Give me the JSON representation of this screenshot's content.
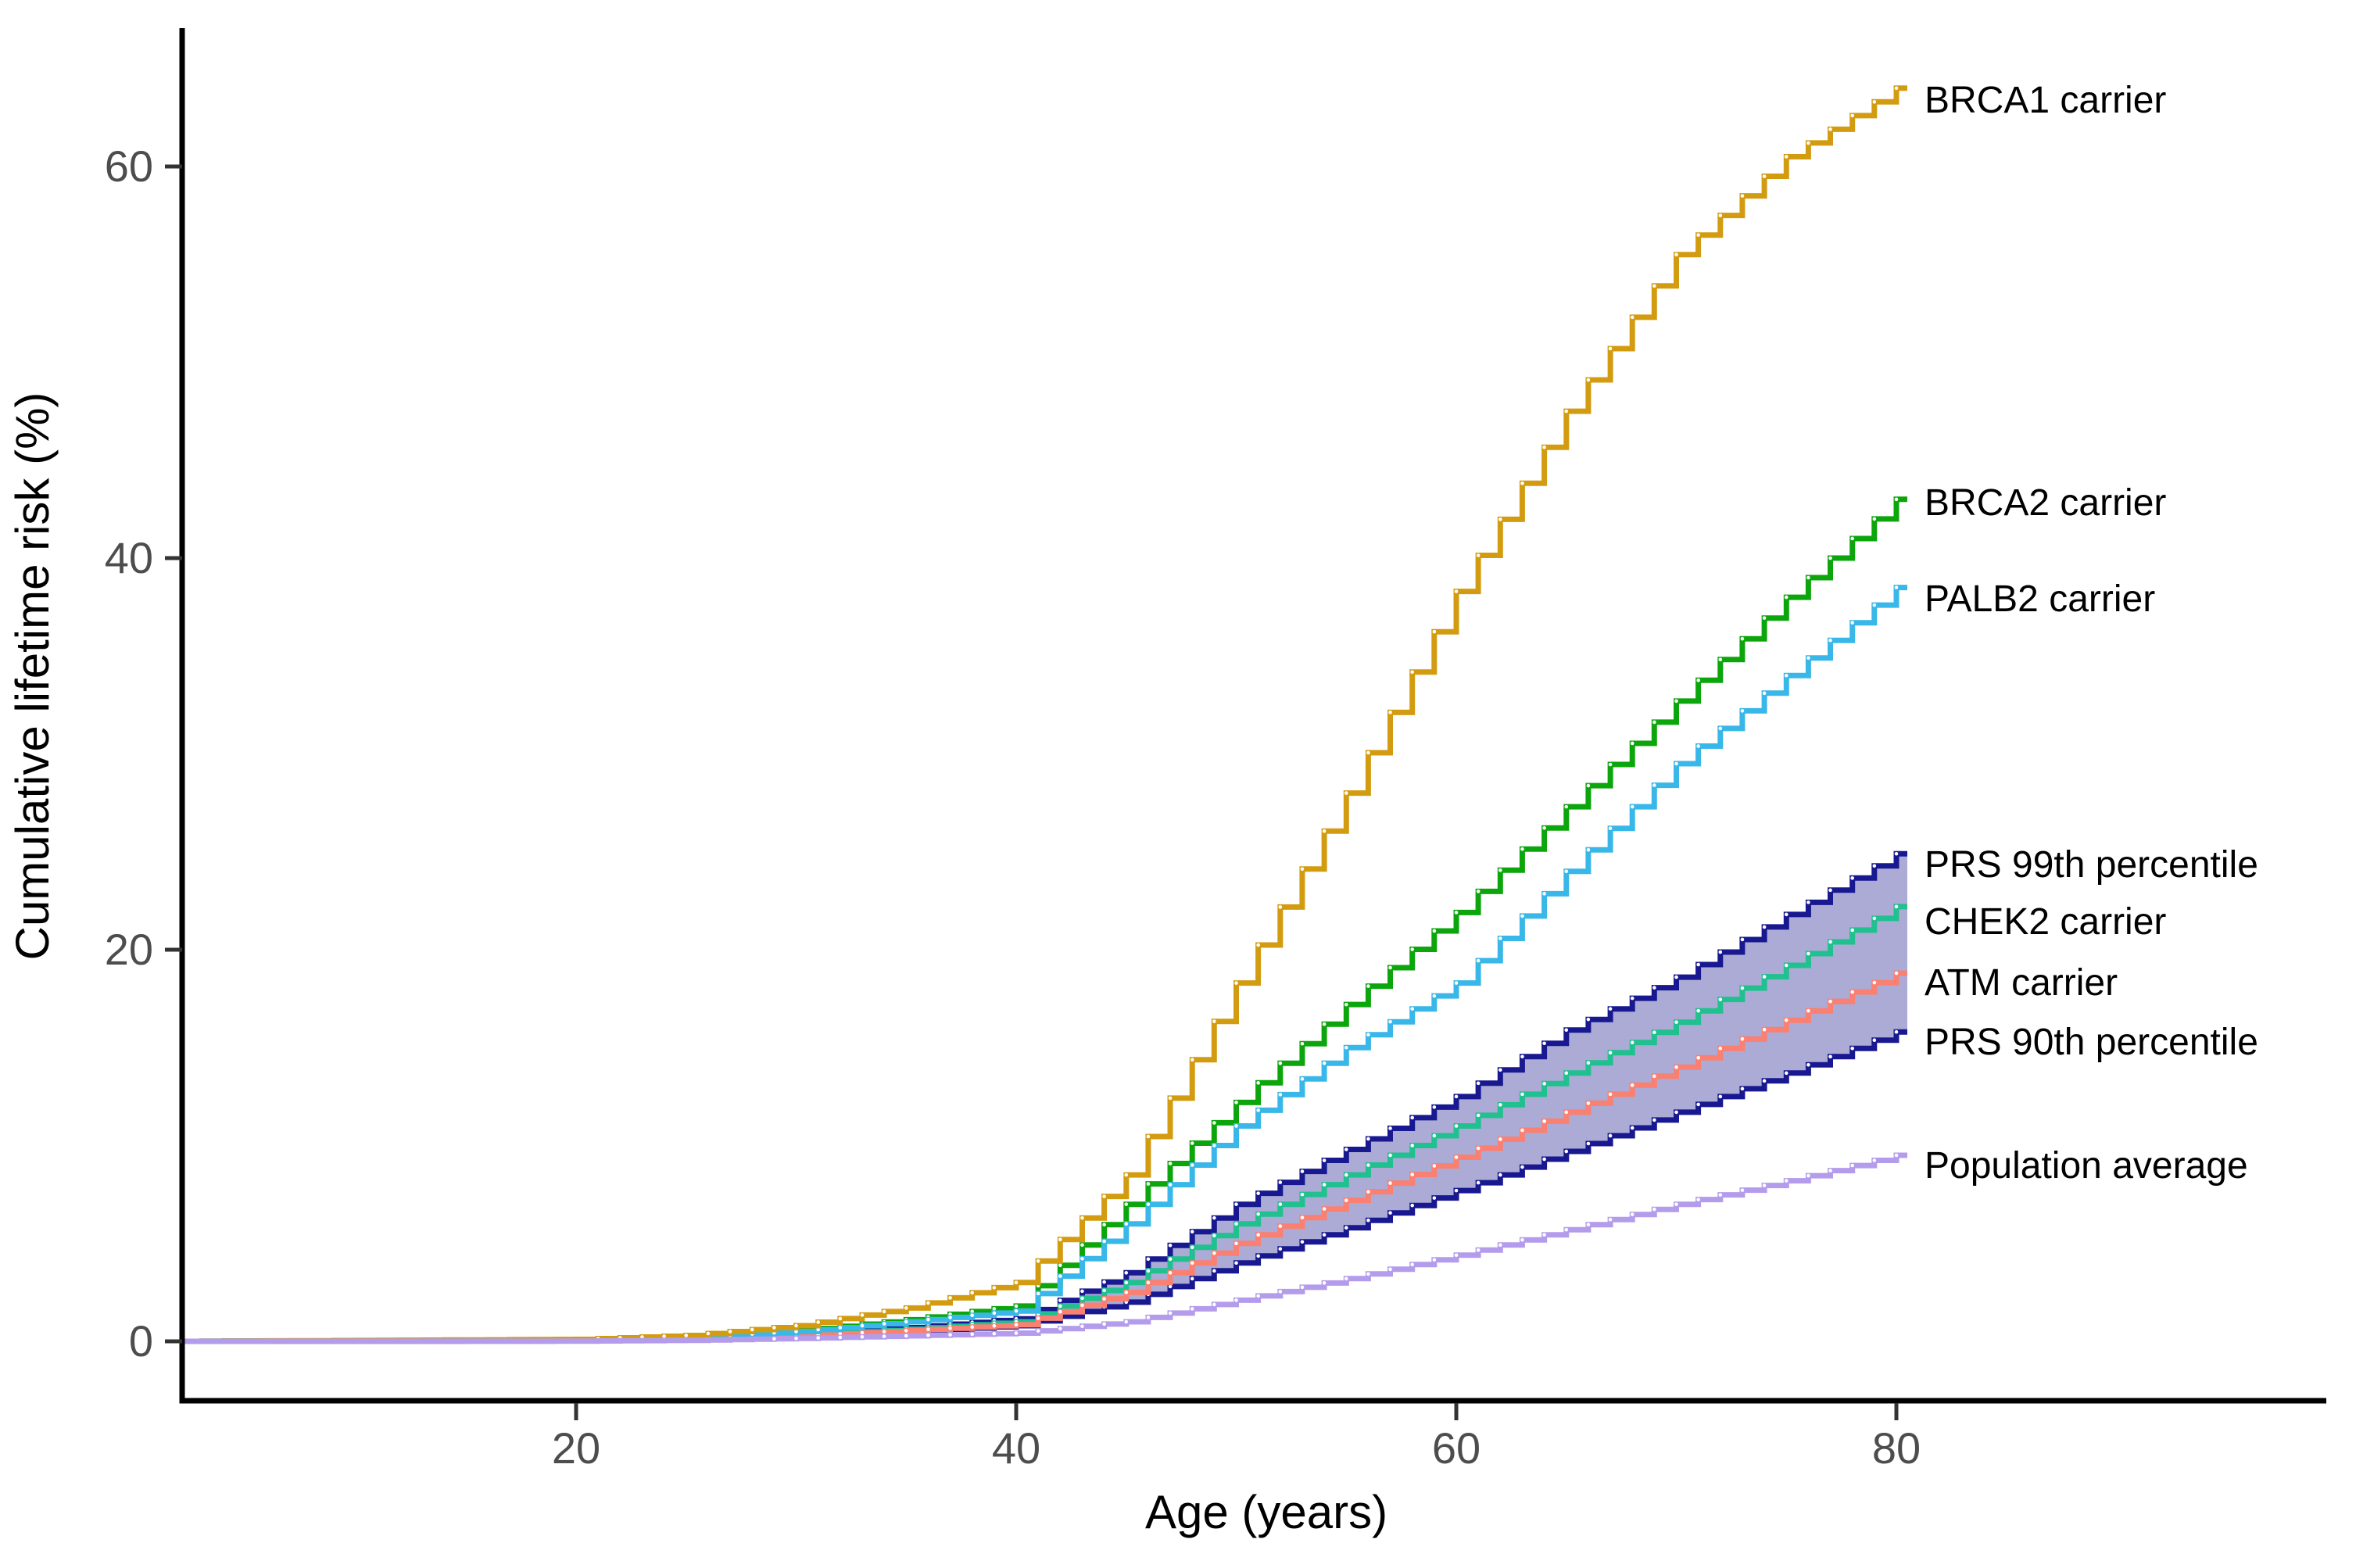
{
  "chart_data": {
    "type": "line",
    "variant": "cumulative-step-curves",
    "title": "",
    "xlabel": "Age (years)",
    "ylabel": "Cumulative lifetime risk (%)",
    "x_ticks": [
      20,
      40,
      60,
      80
    ],
    "y_ticks": [
      0,
      20,
      40,
      60
    ],
    "xlim": [
      2,
      99.5
    ],
    "ylim": [
      0,
      66
    ],
    "grid": "off",
    "legend_position": "direct-labels-right-of-line-ends",
    "x_anchors": [
      2,
      20,
      25,
      30,
      35,
      40,
      45,
      50,
      55,
      60,
      65,
      70,
      75,
      80
    ],
    "series": [
      {
        "label": "BRCA1 carrier",
        "color": "#D39C10",
        "values": [
          0,
          0.1,
          0.3,
          0.8,
          1.7,
          3.0,
          8.5,
          18.3,
          28.0,
          38.3,
          47.5,
          55.5,
          60.5,
          64.0
        ],
        "end_label_y": 127
      },
      {
        "label": "BRCA2 carrier",
        "color": "#0CA60C",
        "values": [
          0,
          0.05,
          0.2,
          0.55,
          1.1,
          1.8,
          7.0,
          12.2,
          17.2,
          21.9,
          27.3,
          32.7,
          38.0,
          43.0
        ],
        "end_label_y": 642
      },
      {
        "label": "PALB2 carrier",
        "color": "#39B7E9",
        "values": [
          0,
          0.05,
          0.18,
          0.5,
          1.0,
          1.55,
          6.0,
          11.0,
          15.0,
          18.3,
          24.0,
          29.5,
          34.0,
          38.5
        ],
        "end_label_y": 765
      },
      {
        "label": "PRS 99th percentile",
        "color": "#181890",
        "values": [
          0,
          0.03,
          0.12,
          0.35,
          0.7,
          1.15,
          3.5,
          7.0,
          9.8,
          12.5,
          15.9,
          18.6,
          21.8,
          24.9
        ],
        "end_label_y": 1105
      },
      {
        "label": "CHEK2 carrier",
        "color": "#21C08F",
        "values": [
          0,
          0.03,
          0.1,
          0.3,
          0.62,
          1.0,
          3.0,
          6.0,
          8.5,
          11.0,
          13.7,
          16.3,
          19.2,
          22.2
        ],
        "end_label_y": 1178
      },
      {
        "label": "ATM carrier",
        "color": "#FA8072",
        "values": [
          0,
          0.02,
          0.09,
          0.27,
          0.55,
          0.85,
          2.5,
          5.0,
          7.2,
          9.4,
          11.7,
          14.0,
          16.4,
          18.8
        ],
        "end_label_y": 1256
      },
      {
        "label": "PRS 90th percentile",
        "color": "#181890",
        "values": [
          0,
          0.02,
          0.08,
          0.24,
          0.5,
          0.8,
          2.0,
          4.0,
          5.8,
          7.7,
          9.7,
          11.7,
          13.7,
          15.8
        ],
        "end_label_y": 1332
      },
      {
        "label": "Population average",
        "color": "#B49CEC",
        "values": [
          0,
          0.01,
          0.05,
          0.15,
          0.28,
          0.42,
          1.0,
          2.1,
          3.2,
          4.4,
          5.7,
          7.0,
          8.2,
          9.5
        ],
        "end_label_y": 1490
      }
    ],
    "band": {
      "name": "PRS 90th-99th percentile range",
      "upper_series": "PRS 99th percentile",
      "lower_series": "PRS 90th percentile",
      "fill": "#ABABD5"
    },
    "style_colors": {
      "axis_line": "#000000",
      "tick_mark": "#333333",
      "tick_label": "#4D4D4D",
      "point_marker": "#FFFFFF"
    }
  }
}
